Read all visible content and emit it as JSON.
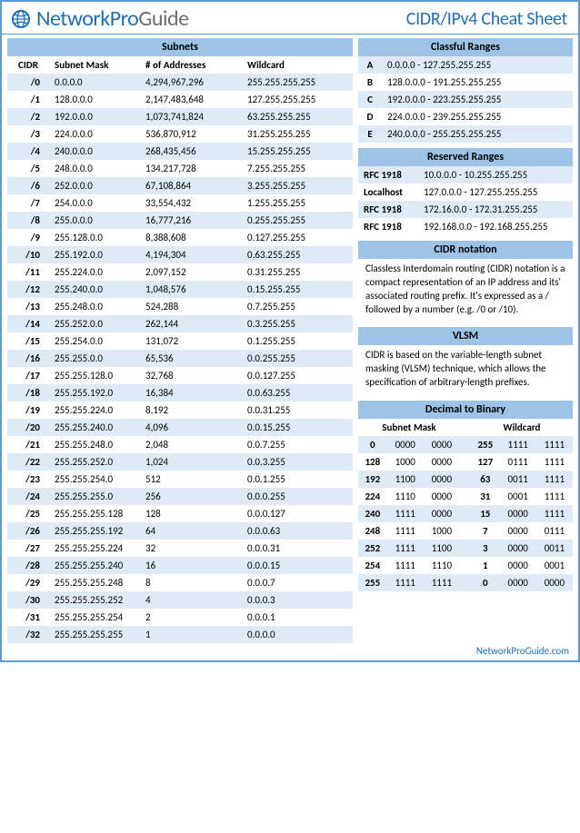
{
  "colors": {
    "accent": "#1f6fb2",
    "header_bar": "#9dc3e6",
    "stripe": "#deebf7",
    "border": "#5a9bd5"
  },
  "brand": {
    "logo_network": "Network",
    "logo_pro": "Pro",
    "logo_guide": "Guide"
  },
  "page_title": "CIDR/IPv4 Cheat Sheet",
  "footer": "NetworkProGuide.com",
  "subnets": {
    "title": "Subnets",
    "headers": {
      "cidr": "CIDR",
      "mask": "Subnet Mask",
      "addr": "# of Addresses",
      "wild": "Wildcard"
    },
    "rows": [
      {
        "c": "/0",
        "m": "0.0.0.0",
        "a": "4,294,967,296",
        "w": "255.255.255.255"
      },
      {
        "c": "/1",
        "m": "128.0.0.0",
        "a": "2,147,483,648",
        "w": "127.255.255.255"
      },
      {
        "c": "/2",
        "m": "192.0.0.0",
        "a": "1,073,741,824",
        "w": "63.255.255.255"
      },
      {
        "c": "/3",
        "m": "224.0.0.0",
        "a": "536,870,912",
        "w": "31.255.255.255"
      },
      {
        "c": "/4",
        "m": "240.0.0.0",
        "a": "268,435,456",
        "w": "15.255.255.255"
      },
      {
        "c": "/5",
        "m": "248.0.0.0",
        "a": "134,217,728",
        "w": "7.255.255.255"
      },
      {
        "c": "/6",
        "m": "252.0.0.0",
        "a": "67,108,864",
        "w": "3.255.255.255"
      },
      {
        "c": "/7",
        "m": "254.0.0.0",
        "a": "33,554,432",
        "w": "1.255.255.255"
      },
      {
        "c": "/8",
        "m": "255.0.0.0",
        "a": "16,777,216",
        "w": "0.255.255.255"
      },
      {
        "c": "/9",
        "m": "255.128.0.0",
        "a": "8,388,608",
        "w": "0.127.255.255"
      },
      {
        "c": "/10",
        "m": "255.192.0.0",
        "a": "4,194,304",
        "w": "0.63.255.255"
      },
      {
        "c": "/11",
        "m": "255.224.0.0",
        "a": "2,097,152",
        "w": "0.31.255.255"
      },
      {
        "c": "/12",
        "m": "255.240.0.0",
        "a": "1,048,576",
        "w": "0.15.255.255"
      },
      {
        "c": "/13",
        "m": "255.248.0.0",
        "a": "524,288",
        "w": "0.7.255.255"
      },
      {
        "c": "/14",
        "m": "255.252.0.0",
        "a": "262,144",
        "w": "0.3.255.255"
      },
      {
        "c": "/15",
        "m": "255.254.0.0",
        "a": "131,072",
        "w": "0.1.255.255"
      },
      {
        "c": "/16",
        "m": "255.255.0.0",
        "a": "65,536",
        "w": "0.0.255.255"
      },
      {
        "c": "/17",
        "m": "255.255.128.0",
        "a": "32,768",
        "w": "0.0.127.255"
      },
      {
        "c": "/18",
        "m": "255.255.192.0",
        "a": "16,384",
        "w": "0.0.63.255"
      },
      {
        "c": "/19",
        "m": "255.255.224.0",
        "a": "8,192",
        "w": "0.0.31.255"
      },
      {
        "c": "/20",
        "m": "255.255.240.0",
        "a": "4,096",
        "w": "0.0.15.255"
      },
      {
        "c": "/21",
        "m": "255.255.248.0",
        "a": "2,048",
        "w": "0.0.7.255"
      },
      {
        "c": "/22",
        "m": "255.255.252.0",
        "a": "1,024",
        "w": "0.0.3.255"
      },
      {
        "c": "/23",
        "m": "255.255.254.0",
        "a": "512",
        "w": "0.0.1.255"
      },
      {
        "c": "/24",
        "m": "255.255.255.0",
        "a": "256",
        "w": "0.0.0.255"
      },
      {
        "c": "/25",
        "m": "255.255.255.128",
        "a": "128",
        "w": "0.0.0.127"
      },
      {
        "c": "/26",
        "m": "255.255.255.192",
        "a": "64",
        "w": "0.0.0.63"
      },
      {
        "c": "/27",
        "m": "255.255.255.224",
        "a": "32",
        "w": "0.0.0.31"
      },
      {
        "c": "/28",
        "m": "255.255.255.240",
        "a": "16",
        "w": "0.0.0.15"
      },
      {
        "c": "/29",
        "m": "255.255.255.248",
        "a": "8",
        "w": "0.0.0.7"
      },
      {
        "c": "/30",
        "m": "255.255.255.252",
        "a": "4",
        "w": "0.0.0.3"
      },
      {
        "c": "/31",
        "m": "255.255.255.254",
        "a": "2",
        "w": "0.0.0.1"
      },
      {
        "c": "/32",
        "m": "255.255.255.255",
        "a": "1",
        "w": "0.0.0.0"
      }
    ]
  },
  "classful": {
    "title": "Classful Ranges",
    "rows": [
      {
        "k": "A",
        "v": "0.0.0.0 - 127.255.255.255"
      },
      {
        "k": "B",
        "v": "128.0.0.0 - 191.255.255.255"
      },
      {
        "k": "C",
        "v": "192.0.0.0 - 223.255.255.255"
      },
      {
        "k": "D",
        "v": "224.0.0.0 - 239.255.255.255"
      },
      {
        "k": "E",
        "v": "240.0.0.0 - 255.255.255.255"
      }
    ]
  },
  "reserved": {
    "title": "Reserved Ranges",
    "rows": [
      {
        "k": "RFC 1918",
        "v": "10.0.0.0 - 10.255.255.255"
      },
      {
        "k": "Localhost",
        "v": "127.0.0.0 - 127.255.255.255"
      },
      {
        "k": "RFC 1918",
        "v": "172.16.0.0 - 172.31.255.255"
      },
      {
        "k": "RFC 1918",
        "v": "192.168.0.0 - 192.168.255.255"
      }
    ]
  },
  "cidr_note": {
    "title": "CIDR notation",
    "text": "Classless Interdomain routing (CIDR) notation is a compact representation of an IP address and its' associated routing prefix. It's expressed as a / followed by a number (e.g. /0 or /10)."
  },
  "vlsm": {
    "title": "VLSM",
    "text": "CIDR is based on the variable-length subnet masking (VLSM) technique, which allows the specification of arbitrary-length prefixes."
  },
  "d2b": {
    "title": "Decimal to Binary",
    "headers": {
      "mask": "Subnet Mask",
      "wild": "Wildcard"
    },
    "rows": [
      {
        "md": "0",
        "mb1": "0000",
        "mb2": "0000",
        "wd": "255",
        "wb1": "1111",
        "wb2": "1111"
      },
      {
        "md": "128",
        "mb1": "1000",
        "mb2": "0000",
        "wd": "127",
        "wb1": "0111",
        "wb2": "1111"
      },
      {
        "md": "192",
        "mb1": "1100",
        "mb2": "0000",
        "wd": "63",
        "wb1": "0011",
        "wb2": "1111"
      },
      {
        "md": "224",
        "mb1": "1110",
        "mb2": "0000",
        "wd": "31",
        "wb1": "0001",
        "wb2": "1111"
      },
      {
        "md": "240",
        "mb1": "1111",
        "mb2": "0000",
        "wd": "15",
        "wb1": "0000",
        "wb2": "1111"
      },
      {
        "md": "248",
        "mb1": "1111",
        "mb2": "1000",
        "wd": "7",
        "wb1": "0000",
        "wb2": "0111"
      },
      {
        "md": "252",
        "mb1": "1111",
        "mb2": "1100",
        "wd": "3",
        "wb1": "0000",
        "wb2": "0011"
      },
      {
        "md": "254",
        "mb1": "1111",
        "mb2": "1110",
        "wd": "1",
        "wb1": "0000",
        "wb2": "0001"
      },
      {
        "md": "255",
        "mb1": "1111",
        "mb2": "1111",
        "wd": "0",
        "wb1": "0000",
        "wb2": "0000"
      }
    ]
  }
}
